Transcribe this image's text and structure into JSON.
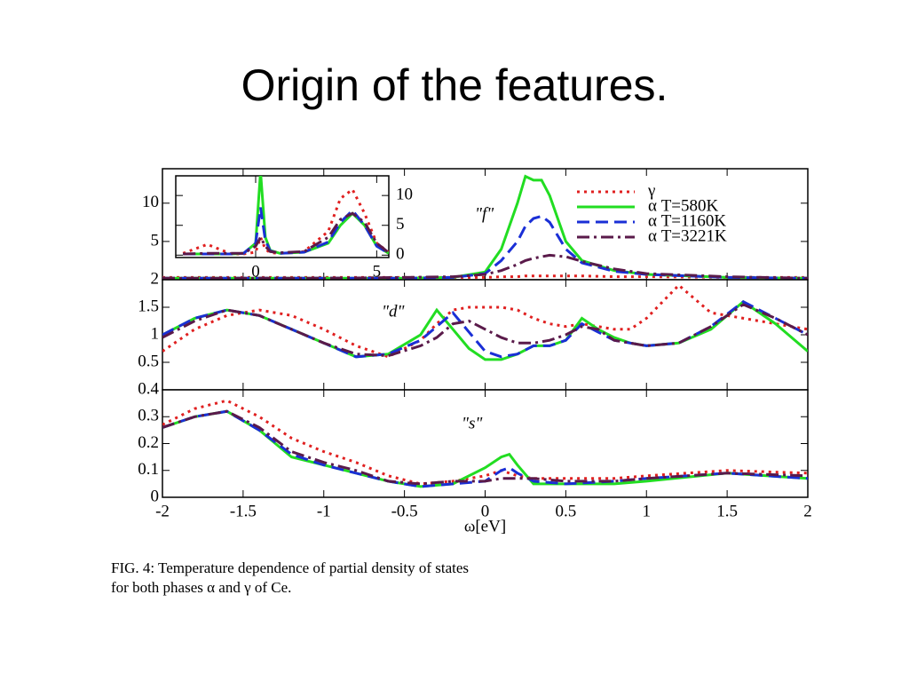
{
  "slide": {
    "title": "Origin of the features."
  },
  "chart_data": [
    {
      "type": "line",
      "annotation": "\"f\"",
      "legend": "upper right",
      "xlim": [
        -2,
        2
      ],
      "ylim": [
        0,
        14.5
      ],
      "yticks": [
        5,
        10
      ],
      "x": [
        -2,
        -1.5,
        -1,
        -0.5,
        -0.2,
        0,
        0.1,
        0.2,
        0.25,
        0.3,
        0.35,
        0.4,
        0.5,
        0.6,
        0.8,
        1,
        1.5,
        2
      ],
      "series": [
        {
          "name": "γ",
          "color": "#e02020",
          "style": "dotted",
          "values": [
            0.3,
            0.3,
            0.3,
            0.3,
            0.3,
            0.3,
            0.4,
            0.4,
            0.5,
            0.5,
            0.5,
            0.5,
            0.5,
            0.5,
            0.4,
            0.4,
            0.3,
            0.3
          ]
        },
        {
          "name": "α T=580K",
          "color": "#22dd22",
          "style": "solid",
          "values": [
            0.2,
            0.2,
            0.2,
            0.2,
            0.3,
            1,
            4,
            10,
            13.5,
            13,
            13,
            11,
            5,
            2.5,
            1.2,
            0.7,
            0.3,
            0.2
          ]
        },
        {
          "name": "α T=1160K",
          "color": "#1a2fd6",
          "style": "dashed",
          "values": [
            0.2,
            0.2,
            0.2,
            0.2,
            0.3,
            0.8,
            2.5,
            5,
            7,
            8,
            8.3,
            7.5,
            4,
            2.2,
            1.1,
            0.7,
            0.3,
            0.2
          ]
        },
        {
          "name": "α T=3221K",
          "color": "#5a1a4a",
          "style": "dashdot",
          "values": [
            0.2,
            0.2,
            0.2,
            0.3,
            0.4,
            0.7,
            1.2,
            2,
            2.5,
            2.8,
            3,
            3.2,
            3,
            2.4,
            1.4,
            0.8,
            0.4,
            0.2
          ]
        }
      ]
    },
    {
      "type": "line",
      "annotation": "\"d\"",
      "xlim": [
        -2,
        2
      ],
      "ylim": [
        0,
        2
      ],
      "yticks": [
        0.5,
        1,
        1.5,
        2
      ],
      "x": [
        -2,
        -1.8,
        -1.6,
        -1.4,
        -1.2,
        -1,
        -0.8,
        -0.6,
        -0.4,
        -0.3,
        -0.2,
        -0.1,
        0,
        0.1,
        0.2,
        0.3,
        0.4,
        0.5,
        0.6,
        0.7,
        0.8,
        0.9,
        1,
        1.2,
        1.4,
        1.6,
        1.8,
        2
      ],
      "series": [
        {
          "color": "#e02020",
          "style": "dotted",
          "values": [
            0.7,
            1.1,
            1.35,
            1.45,
            1.35,
            1.1,
            0.8,
            0.6,
            0.9,
            1.2,
            1.45,
            1.5,
            1.5,
            1.5,
            1.45,
            1.3,
            1.2,
            1.15,
            1.2,
            1.15,
            1.1,
            1.1,
            1.3,
            1.9,
            1.4,
            1.3,
            1.2,
            1.1
          ]
        },
        {
          "color": "#22dd22",
          "style": "solid",
          "values": [
            1.0,
            1.3,
            1.45,
            1.35,
            1.1,
            0.85,
            0.6,
            0.65,
            1.0,
            1.45,
            1.1,
            0.75,
            0.55,
            0.55,
            0.65,
            0.8,
            0.8,
            0.9,
            1.3,
            1.1,
            0.95,
            0.85,
            0.8,
            0.85,
            1.1,
            1.6,
            1.2,
            0.7
          ]
        },
        {
          "color": "#1a2fd6",
          "style": "dashed",
          "values": [
            1.0,
            1.3,
            1.45,
            1.35,
            1.1,
            0.85,
            0.6,
            0.65,
            0.9,
            1.15,
            1.4,
            1.05,
            0.7,
            0.6,
            0.65,
            0.8,
            0.8,
            0.9,
            1.2,
            1.05,
            0.9,
            0.85,
            0.8,
            0.85,
            1.15,
            1.6,
            1.3,
            1.0
          ]
        },
        {
          "color": "#5a1a4a",
          "style": "dashdot",
          "values": [
            0.95,
            1.25,
            1.45,
            1.35,
            1.1,
            0.85,
            0.65,
            0.62,
            0.8,
            0.95,
            1.2,
            1.25,
            1.1,
            0.95,
            0.85,
            0.85,
            0.9,
            1.0,
            1.15,
            1.1,
            0.9,
            0.85,
            0.8,
            0.85,
            1.15,
            1.55,
            1.3,
            1.0
          ]
        }
      ]
    },
    {
      "type": "line",
      "annotation": "\"s\"",
      "x_label": "ω[eV]",
      "xlim": [
        -2,
        2
      ],
      "xticks": [
        -2,
        -1.5,
        -1,
        -0.5,
        0,
        0.5,
        1,
        1.5,
        2
      ],
      "ylim": [
        0,
        0.4
      ],
      "yticks": [
        0,
        0.1,
        0.2,
        0.3,
        0.4
      ],
      "x": [
        -2,
        -1.8,
        -1.6,
        -1.4,
        -1.2,
        -1,
        -0.8,
        -0.6,
        -0.4,
        -0.2,
        0,
        0.1,
        0.15,
        0.2,
        0.3,
        0.5,
        0.8,
        1,
        1.5,
        2
      ],
      "series": [
        {
          "color": "#e02020",
          "style": "dotted",
          "values": [
            0.27,
            0.33,
            0.36,
            0.3,
            0.22,
            0.17,
            0.13,
            0.08,
            0.05,
            0.06,
            0.08,
            0.1,
            0.09,
            0.08,
            0.07,
            0.07,
            0.07,
            0.08,
            0.1,
            0.09
          ]
        },
        {
          "color": "#22dd22",
          "style": "solid",
          "values": [
            0.26,
            0.3,
            0.32,
            0.25,
            0.15,
            0.12,
            0.09,
            0.06,
            0.04,
            0.05,
            0.11,
            0.15,
            0.16,
            0.12,
            0.05,
            0.05,
            0.05,
            0.06,
            0.09,
            0.07
          ]
        },
        {
          "color": "#1a2fd6",
          "style": "dashed",
          "values": [
            0.26,
            0.3,
            0.32,
            0.25,
            0.16,
            0.12,
            0.09,
            0.06,
            0.04,
            0.05,
            0.06,
            0.1,
            0.11,
            0.09,
            0.06,
            0.05,
            0.06,
            0.07,
            0.09,
            0.07
          ]
        },
        {
          "color": "#5a1a4a",
          "style": "dashdot",
          "values": [
            0.26,
            0.3,
            0.32,
            0.26,
            0.17,
            0.13,
            0.1,
            0.06,
            0.05,
            0.06,
            0.06,
            0.07,
            0.07,
            0.07,
            0.07,
            0.06,
            0.06,
            0.07,
            0.09,
            0.08
          ]
        }
      ]
    },
    {
      "type": "line",
      "ytick_side": "right",
      "xlim": [
        -3.3,
        5.5
      ],
      "xticks": [
        0,
        5
      ],
      "ylim": [
        -0.4,
        13.3
      ],
      "yticks": [
        0,
        5,
        10
      ],
      "x": [
        -3,
        -2,
        -1,
        -0.5,
        0,
        0.2,
        0.4,
        0.6,
        1,
        2,
        3,
        3.5,
        4,
        4.5,
        5,
        5.5
      ],
      "series": [
        {
          "color": "#e02020",
          "style": "dotted",
          "values": [
            0.3,
            1.8,
            0.2,
            0.2,
            0.5,
            3,
            1,
            0.4,
            0.3,
            0.6,
            4,
            9.5,
            11,
            7,
            2,
            0.5
          ]
        },
        {
          "color": "#22dd22",
          "style": "solid",
          "values": [
            0.2,
            0.2,
            0.2,
            0.3,
            2,
            14,
            3,
            0.8,
            0.3,
            0.5,
            2,
            5,
            7,
            5,
            1.5,
            0.3
          ]
        },
        {
          "color": "#1a2fd6",
          "style": "dashed",
          "values": [
            0.2,
            0.2,
            0.2,
            0.3,
            2,
            8,
            2.5,
            0.7,
            0.3,
            0.5,
            2.2,
            5.5,
            7.5,
            5,
            1.5,
            0.3
          ]
        },
        {
          "color": "#5a1a4a",
          "style": "dashdot",
          "values": [
            0.2,
            0.3,
            0.3,
            0.3,
            1.5,
            3,
            1.5,
            0.6,
            0.4,
            0.6,
            3,
            6,
            7,
            5.5,
            2,
            0.4
          ]
        }
      ]
    }
  ],
  "caption": {
    "line1": "FIG. 4: Temperature dependence of partial density of states",
    "line2": "for both phases α and γ of Ce."
  }
}
